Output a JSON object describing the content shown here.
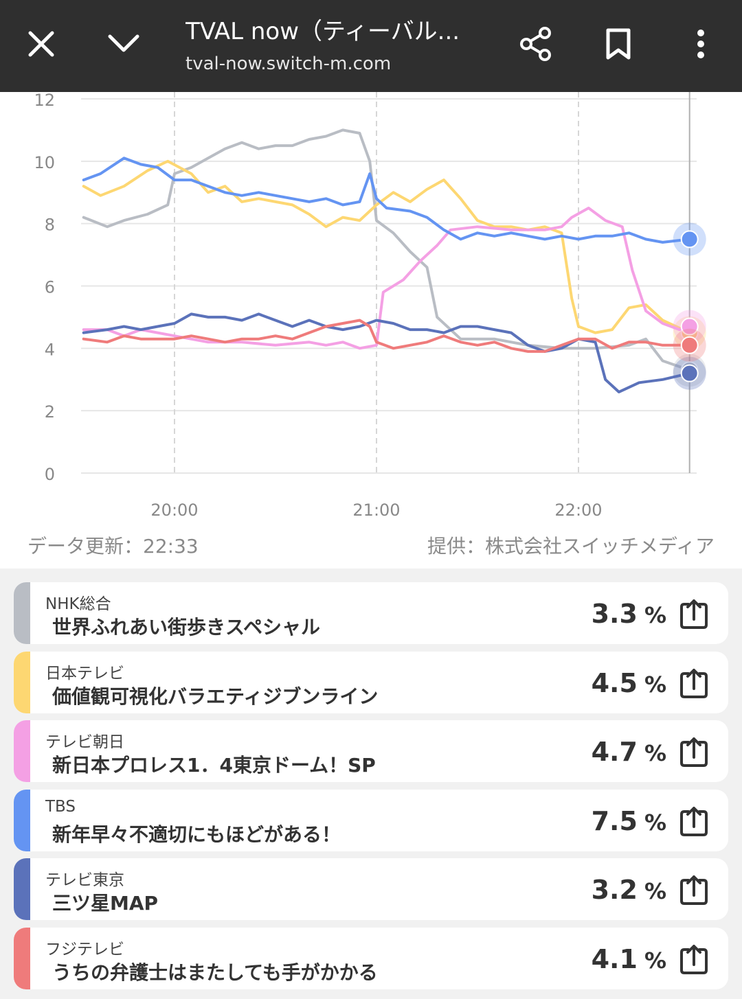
{
  "topbar": {
    "title": "TVAL now（ティーバル...",
    "url": "tval-now.switch-m.com",
    "icons": [
      "close-icon",
      "chevron-down-icon",
      "share-icon",
      "bookmark-icon",
      "more-vert-icon"
    ]
  },
  "footer": {
    "updated": "データ更新：22:33",
    "provider": "提供：株式会社スイッチメディア"
  },
  "chart_data": {
    "type": "line",
    "x_ticks": [
      "20:00",
      "21:00",
      "22:00"
    ],
    "y_ticks": [
      "0",
      "2",
      "4",
      "6",
      "8",
      "10",
      "12"
    ],
    "ylim": [
      0,
      12
    ],
    "xlim": [
      "19:33",
      "22:33"
    ],
    "grid": true,
    "series": [
      {
        "name": "NHK総合",
        "color": "#b9bdc4",
        "points": [
          [
            "19:33",
            8.2
          ],
          [
            "19:40",
            7.9
          ],
          [
            "19:45",
            8.1
          ],
          [
            "19:52",
            8.3
          ],
          [
            "19:58",
            8.6
          ],
          [
            "20:00",
            9.6
          ],
          [
            "20:05",
            9.8
          ],
          [
            "20:10",
            10.1
          ],
          [
            "20:15",
            10.4
          ],
          [
            "20:20",
            10.6
          ],
          [
            "20:25",
            10.4
          ],
          [
            "20:30",
            10.5
          ],
          [
            "20:35",
            10.5
          ],
          [
            "20:40",
            10.7
          ],
          [
            "20:45",
            10.8
          ],
          [
            "20:50",
            11.0
          ],
          [
            "20:55",
            10.9
          ],
          [
            "20:58",
            10.0
          ],
          [
            "21:00",
            8.1
          ],
          [
            "21:05",
            7.7
          ],
          [
            "21:10",
            7.1
          ],
          [
            "21:15",
            6.6
          ],
          [
            "21:18",
            5.0
          ],
          [
            "21:25",
            4.3
          ],
          [
            "21:35",
            4.3
          ],
          [
            "21:45",
            4.1
          ],
          [
            "21:55",
            4.0
          ],
          [
            "22:05",
            4.0
          ],
          [
            "22:15",
            4.1
          ],
          [
            "22:20",
            4.3
          ],
          [
            "22:25",
            3.6
          ],
          [
            "22:33",
            3.3
          ]
        ]
      },
      {
        "name": "日本テレビ",
        "color": "#fdd772",
        "points": [
          [
            "19:33",
            9.2
          ],
          [
            "19:38",
            8.9
          ],
          [
            "19:45",
            9.2
          ],
          [
            "19:52",
            9.7
          ],
          [
            "19:58",
            10.0
          ],
          [
            "20:05",
            9.6
          ],
          [
            "20:10",
            9.0
          ],
          [
            "20:15",
            9.2
          ],
          [
            "20:20",
            8.7
          ],
          [
            "20:25",
            8.8
          ],
          [
            "20:30",
            8.7
          ],
          [
            "20:35",
            8.6
          ],
          [
            "20:40",
            8.3
          ],
          [
            "20:45",
            7.9
          ],
          [
            "20:50",
            8.2
          ],
          [
            "20:55",
            8.1
          ],
          [
            "21:00",
            8.6
          ],
          [
            "21:05",
            9.0
          ],
          [
            "21:10",
            8.7
          ],
          [
            "21:15",
            9.1
          ],
          [
            "21:20",
            9.4
          ],
          [
            "21:25",
            8.8
          ],
          [
            "21:30",
            8.1
          ],
          [
            "21:35",
            7.9
          ],
          [
            "21:40",
            7.9
          ],
          [
            "21:45",
            7.8
          ],
          [
            "21:50",
            7.9
          ],
          [
            "21:55",
            7.7
          ],
          [
            "21:58",
            5.6
          ],
          [
            "22:00",
            4.7
          ],
          [
            "22:05",
            4.5
          ],
          [
            "22:10",
            4.6
          ],
          [
            "22:15",
            5.3
          ],
          [
            "22:20",
            5.4
          ],
          [
            "22:25",
            4.9
          ],
          [
            "22:33",
            4.5
          ]
        ]
      },
      {
        "name": "テレビ朝日",
        "color": "#f4a0e4",
        "points": [
          [
            "19:33",
            4.6
          ],
          [
            "19:40",
            4.6
          ],
          [
            "19:45",
            4.4
          ],
          [
            "19:50",
            4.6
          ],
          [
            "20:00",
            4.4
          ],
          [
            "20:10",
            4.2
          ],
          [
            "20:20",
            4.2
          ],
          [
            "20:30",
            4.1
          ],
          [
            "20:40",
            4.2
          ],
          [
            "20:45",
            4.1
          ],
          [
            "20:50",
            4.2
          ],
          [
            "20:55",
            4.0
          ],
          [
            "21:00",
            4.1
          ],
          [
            "21:02",
            5.8
          ],
          [
            "21:08",
            6.2
          ],
          [
            "21:13",
            6.8
          ],
          [
            "21:18",
            7.3
          ],
          [
            "21:22",
            7.8
          ],
          [
            "21:30",
            7.9
          ],
          [
            "21:40",
            7.8
          ],
          [
            "21:50",
            7.8
          ],
          [
            "21:55",
            7.9
          ],
          [
            "21:58",
            8.2
          ],
          [
            "22:03",
            8.5
          ],
          [
            "22:08",
            8.1
          ],
          [
            "22:13",
            7.9
          ],
          [
            "22:16",
            6.5
          ],
          [
            "22:20",
            5.2
          ],
          [
            "22:25",
            4.8
          ],
          [
            "22:30",
            4.6
          ],
          [
            "22:33",
            4.7
          ]
        ]
      },
      {
        "name": "TBS",
        "color": "#6494f2",
        "points": [
          [
            "19:33",
            9.4
          ],
          [
            "19:38",
            9.6
          ],
          [
            "19:45",
            10.1
          ],
          [
            "19:50",
            9.9
          ],
          [
            "19:55",
            9.8
          ],
          [
            "20:00",
            9.4
          ],
          [
            "20:05",
            9.4
          ],
          [
            "20:10",
            9.2
          ],
          [
            "20:15",
            9.0
          ],
          [
            "20:20",
            8.9
          ],
          [
            "20:25",
            9.0
          ],
          [
            "20:30",
            8.9
          ],
          [
            "20:35",
            8.8
          ],
          [
            "20:40",
            8.7
          ],
          [
            "20:45",
            8.8
          ],
          [
            "20:50",
            8.6
          ],
          [
            "20:55",
            8.7
          ],
          [
            "20:58",
            9.6
          ],
          [
            "21:00",
            8.8
          ],
          [
            "21:03",
            8.5
          ],
          [
            "21:10",
            8.4
          ],
          [
            "21:15",
            8.2
          ],
          [
            "21:20",
            7.8
          ],
          [
            "21:25",
            7.5
          ],
          [
            "21:30",
            7.7
          ],
          [
            "21:35",
            7.6
          ],
          [
            "21:40",
            7.7
          ],
          [
            "21:45",
            7.6
          ],
          [
            "21:50",
            7.5
          ],
          [
            "21:55",
            7.6
          ],
          [
            "22:00",
            7.5
          ],
          [
            "22:05",
            7.6
          ],
          [
            "22:10",
            7.6
          ],
          [
            "22:15",
            7.7
          ],
          [
            "22:20",
            7.5
          ],
          [
            "22:25",
            7.4
          ],
          [
            "22:33",
            7.5
          ]
        ]
      },
      {
        "name": "テレビ東京",
        "color": "#5b72ba",
        "points": [
          [
            "19:33",
            4.5
          ],
          [
            "19:40",
            4.6
          ],
          [
            "19:45",
            4.7
          ],
          [
            "19:50",
            4.6
          ],
          [
            "19:55",
            4.7
          ],
          [
            "20:00",
            4.8
          ],
          [
            "20:05",
            5.1
          ],
          [
            "20:10",
            5.0
          ],
          [
            "20:15",
            5.0
          ],
          [
            "20:20",
            4.9
          ],
          [
            "20:25",
            5.1
          ],
          [
            "20:30",
            4.9
          ],
          [
            "20:35",
            4.7
          ],
          [
            "20:40",
            4.9
          ],
          [
            "20:45",
            4.7
          ],
          [
            "20:50",
            4.6
          ],
          [
            "20:55",
            4.7
          ],
          [
            "21:00",
            4.9
          ],
          [
            "21:05",
            4.8
          ],
          [
            "21:10",
            4.6
          ],
          [
            "21:15",
            4.6
          ],
          [
            "21:20",
            4.5
          ],
          [
            "21:25",
            4.7
          ],
          [
            "21:30",
            4.7
          ],
          [
            "21:35",
            4.6
          ],
          [
            "21:40",
            4.5
          ],
          [
            "21:45",
            4.1
          ],
          [
            "21:50",
            3.9
          ],
          [
            "21:55",
            4.0
          ],
          [
            "22:00",
            4.3
          ],
          [
            "22:05",
            4.2
          ],
          [
            "22:08",
            3.0
          ],
          [
            "22:12",
            2.6
          ],
          [
            "22:18",
            2.9
          ],
          [
            "22:25",
            3.0
          ],
          [
            "22:33",
            3.2
          ]
        ]
      },
      {
        "name": "フジテレビ",
        "color": "#ef7b7b",
        "points": [
          [
            "19:33",
            4.3
          ],
          [
            "19:40",
            4.2
          ],
          [
            "19:45",
            4.4
          ],
          [
            "19:50",
            4.3
          ],
          [
            "20:00",
            4.3
          ],
          [
            "20:05",
            4.4
          ],
          [
            "20:10",
            4.3
          ],
          [
            "20:15",
            4.2
          ],
          [
            "20:20",
            4.3
          ],
          [
            "20:25",
            4.3
          ],
          [
            "20:30",
            4.4
          ],
          [
            "20:35",
            4.3
          ],
          [
            "20:40",
            4.5
          ],
          [
            "20:45",
            4.7
          ],
          [
            "20:50",
            4.8
          ],
          [
            "20:55",
            4.9
          ],
          [
            "20:58",
            4.7
          ],
          [
            "21:00",
            4.2
          ],
          [
            "21:05",
            4.0
          ],
          [
            "21:10",
            4.1
          ],
          [
            "21:15",
            4.2
          ],
          [
            "21:20",
            4.4
          ],
          [
            "21:25",
            4.2
          ],
          [
            "21:30",
            4.1
          ],
          [
            "21:35",
            4.2
          ],
          [
            "21:40",
            4.0
          ],
          [
            "21:45",
            3.9
          ],
          [
            "21:50",
            3.9
          ],
          [
            "21:55",
            4.1
          ],
          [
            "22:00",
            4.3
          ],
          [
            "22:05",
            4.3
          ],
          [
            "22:10",
            4.0
          ],
          [
            "22:15",
            4.2
          ],
          [
            "22:20",
            4.2
          ],
          [
            "22:25",
            4.1
          ],
          [
            "22:33",
            4.1
          ]
        ]
      }
    ]
  },
  "channels": [
    {
      "channel": "NHK総合",
      "program": "世界ふれあい街歩きスペシャル",
      "value": "3.3",
      "unit": "%",
      "color": "#b9bdc4"
    },
    {
      "channel": "日本テレビ",
      "program": "価値観可視化バラエティジブンライン",
      "value": "4.5",
      "unit": "%",
      "color": "#fdd772"
    },
    {
      "channel": "テレビ朝日",
      "program": "新日本プロレス1．4東京ドーム！SP",
      "value": "4.7",
      "unit": "%",
      "color": "#f4a0e4"
    },
    {
      "channel": "TBS",
      "program": "新年早々不適切にもほどがある！",
      "value": "7.5",
      "unit": "%",
      "color": "#6494f2"
    },
    {
      "channel": "テレビ東京",
      "program": "三ツ星MAP",
      "value": "3.2",
      "unit": "%",
      "color": "#5b72ba"
    },
    {
      "channel": "フジテレビ",
      "program": "うちの弁護士はまたしても手がかかる",
      "value": "4.1",
      "unit": "%",
      "color": "#ef7b7b"
    }
  ]
}
